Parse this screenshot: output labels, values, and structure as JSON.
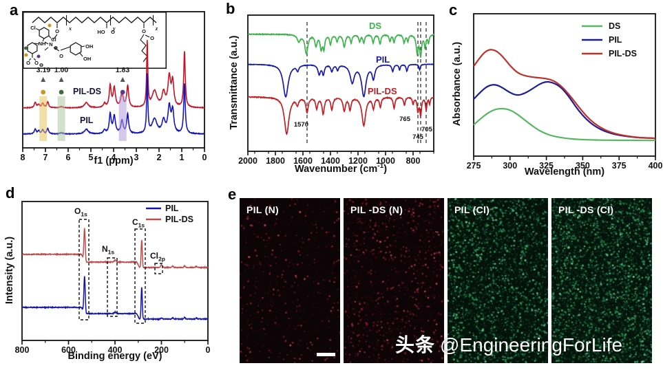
{
  "letters": {
    "a": "a",
    "b": "b",
    "c": "c",
    "d": "d",
    "e": "e"
  },
  "watermark": {
    "prefix": "头条",
    "handle": "@EngineeringForLife"
  },
  "inset": {
    "cl1": "Cl",
    "cl2": "Cl",
    "nh": "NH",
    "o_a": "O",
    "o_b": "O",
    "minus": "⊖",
    "x": "x",
    "y": "y",
    "z": "z",
    "o_x": "O",
    "n": "N",
    "plus": "⊕",
    "o_c": "O",
    "oh1": "OH",
    "oh2": "OH",
    "ho": "HO",
    "o_y": "O",
    "o_z": "O",
    "o_z2": "O"
  },
  "chart_data": [
    {
      "type": "line",
      "subtype": "nmr",
      "panel": "a",
      "xlabel": "f1 (ppm)",
      "ylabel": "",
      "xlim": [
        8,
        0
      ],
      "xticks": [
        8,
        7,
        6,
        5,
        4,
        3,
        2,
        1,
        0
      ],
      "series": [
        {
          "name": "PIL-DS",
          "color": "#c41425"
        },
        {
          "name": "PIL",
          "color": "#1515bd"
        }
      ],
      "peaks": [
        [
          7.45,
          0.08,
          0.05
        ],
        [
          7.3,
          0.05,
          0.05
        ],
        [
          7.12,
          0.07,
          0.05
        ],
        [
          6.9,
          0.09,
          0.05
        ],
        [
          6.3,
          0.02,
          0.08
        ],
        [
          5.2,
          0.08,
          0.1
        ],
        [
          4.4,
          0.06,
          0.06
        ],
        [
          4.15,
          0.33,
          0.05
        ],
        [
          3.97,
          0.3,
          0.06
        ],
        [
          3.63,
          0.22,
          0.06
        ],
        [
          3.38,
          0.33,
          0.05
        ],
        [
          2.52,
          1.0,
          0.03
        ],
        [
          2.2,
          0.25,
          0.13
        ],
        [
          1.8,
          0.22,
          0.08
        ],
        [
          1.55,
          0.45,
          0.07
        ],
        [
          1.4,
          0.38,
          0.06
        ],
        [
          0.88,
          0.85,
          0.04
        ]
      ],
      "integrations": [
        {
          "text": "3.19",
          "ppm": 7.1,
          "band": "#e7c35f",
          "dot": "#c9961e"
        },
        {
          "text": "1.00",
          "ppm": 6.3,
          "band": "#aec6a3",
          "dot": "#41693a"
        },
        {
          "text": "1.83",
          "ppm": 3.6,
          "band": "#b39bd8",
          "dot": "#5a3a8e"
        }
      ]
    },
    {
      "type": "line",
      "subtype": "ftir",
      "panel": "b",
      "ylabel": "Transmittance (a.u.)",
      "xlabel_parts": {
        "pre": "Wavenumber (cm",
        "sup": "-1",
        "post": ")"
      },
      "xlim": [
        2000,
        650
      ],
      "xticks": [
        2000,
        1800,
        1600,
        1400,
        1200,
        1000,
        800
      ],
      "series": [
        {
          "name": "DS",
          "color": "#3cb44b",
          "base": 0.86,
          "dips": [
            [
              1630,
              0.05,
              14
            ],
            [
              1575,
              0.14,
              13
            ],
            [
              1505,
              0.08,
              10
            ],
            [
              1468,
              0.1,
              9
            ],
            [
              1448,
              0.1,
              8
            ],
            [
              1400,
              0.07,
              8
            ],
            [
              1352,
              0.05,
              8
            ],
            [
              1300,
              0.09,
              10
            ],
            [
              1250,
              0.06,
              8
            ],
            [
              1188,
              0.05,
              8
            ],
            [
              1158,
              0.06,
              8
            ],
            [
              1090,
              0.06,
              8
            ],
            [
              1040,
              0.07,
              8
            ],
            [
              968,
              0.05,
              7
            ],
            [
              938,
              0.06,
              7
            ],
            [
              865,
              0.06,
              8
            ],
            [
              838,
              0.05,
              6
            ],
            [
              770,
              0.13,
              9
            ],
            [
              745,
              0.15,
              8
            ],
            [
              713,
              0.09,
              7
            ],
            [
              688,
              0.06,
              6
            ]
          ]
        },
        {
          "name": "PIL",
          "color": "#1818b0",
          "base": 0.64,
          "dips": [
            [
              1725,
              0.24,
              22
            ],
            [
              1638,
              0.04,
              10
            ],
            [
              1482,
              0.07,
              11
            ],
            [
              1452,
              0.07,
              9
            ],
            [
              1390,
              0.05,
              9
            ],
            [
              1348,
              0.04,
              8
            ],
            [
              1242,
              0.13,
              18
            ],
            [
              1158,
              0.23,
              19
            ],
            [
              1088,
              0.1,
              12
            ],
            [
              948,
              0.05,
              8
            ],
            [
              898,
              0.04,
              6
            ],
            [
              845,
              0.05,
              7
            ],
            [
              752,
              0.04,
              6
            ]
          ]
        },
        {
          "name": "PIL-DS",
          "color": "#c41e24",
          "base": 0.4,
          "dips": [
            [
              1718,
              0.27,
              20
            ],
            [
              1640,
              0.05,
              10
            ],
            [
              1570,
              0.11,
              10
            ],
            [
              1500,
              0.08,
              9
            ],
            [
              1453,
              0.12,
              10
            ],
            [
              1390,
              0.09,
              9
            ],
            [
              1300,
              0.1,
              10
            ],
            [
              1258,
              0.09,
              9
            ],
            [
              1158,
              0.21,
              16
            ],
            [
              1088,
              0.08,
              9
            ],
            [
              1038,
              0.07,
              8
            ],
            [
              938,
              0.08,
              8
            ],
            [
              863,
              0.06,
              7
            ],
            [
              800,
              0.05,
              6
            ],
            [
              765,
              0.1,
              7
            ],
            [
              745,
              0.13,
              7
            ],
            [
              705,
              0.09,
              6
            ],
            [
              680,
              0.05,
              5
            ]
          ]
        }
      ],
      "dashed": [
        {
          "pos": 1570,
          "label": "1570"
        },
        {
          "pos": 765,
          "label": "765"
        },
        {
          "pos": 745,
          "label": "745"
        },
        {
          "pos": 705,
          "label": "705"
        }
      ]
    },
    {
      "type": "line",
      "subtype": "uv",
      "panel": "c",
      "ylabel": "Absorbance (a.u.)",
      "xlabel": "Wavelength (nm)",
      "xlim": [
        275,
        400
      ],
      "xticks": [
        275,
        300,
        325,
        350,
        375,
        400
      ],
      "x_start": 275,
      "x_step": 5,
      "series": [
        {
          "name": "DS",
          "color": "#55b860",
          "values": [
            0.22,
            0.265,
            0.305,
            0.33,
            0.335,
            0.325,
            0.295,
            0.255,
            0.215,
            0.18,
            0.155,
            0.14,
            0.13,
            0.123,
            0.119,
            0.116,
            0.114,
            0.113,
            0.112,
            0.112,
            0.111,
            0.111,
            0.111,
            0.11,
            0.11,
            0.11
          ]
        },
        {
          "name": "PIL",
          "color": "#1c1c96",
          "values": [
            0.4,
            0.455,
            0.495,
            0.505,
            0.48,
            0.445,
            0.425,
            0.44,
            0.47,
            0.505,
            0.525,
            0.515,
            0.485,
            0.425,
            0.35,
            0.285,
            0.235,
            0.2,
            0.175,
            0.158,
            0.147,
            0.139,
            0.133,
            0.129,
            0.127,
            0.125
          ]
        },
        {
          "name": "PIL-DS",
          "color": "#c03028",
          "values": [
            0.63,
            0.705,
            0.75,
            0.745,
            0.7,
            0.635,
            0.585,
            0.565,
            0.555,
            0.55,
            0.545,
            0.53,
            0.495,
            0.44,
            0.375,
            0.31,
            0.255,
            0.215,
            0.185,
            0.165,
            0.151,
            0.142,
            0.135,
            0.13,
            0.127,
            0.125
          ]
        }
      ]
    },
    {
      "type": "line",
      "subtype": "xps",
      "panel": "d",
      "ylabel": "Intensity (a.u.)",
      "xlabel": "Binding energy (eV)",
      "xlim": [
        800,
        0
      ],
      "xticks": [
        800,
        600,
        400,
        200,
        0
      ],
      "series": [
        {
          "name": "PIL",
          "color": "#1414a8",
          "levels": [
            [
              800,
              537,
              0.238
            ],
            [
              537,
              300,
              0.193
            ],
            [
              300,
              0,
              0.154
            ]
          ],
          "peaks": [
            [
              531,
              0.27,
              4
            ],
            [
              399,
              0.01,
              6
            ],
            [
              285,
              0.23,
              3.5
            ],
            [
              200,
              0.006,
              5
            ],
            [
              152,
              0.01,
              4
            ],
            [
              100,
              0.012,
              4
            ],
            [
              50,
              0.008,
              4
            ]
          ]
        },
        {
          "name": "PIL-DS",
          "color": "#bf4a4a",
          "levels": [
            [
              800,
              537,
              0.62
            ],
            [
              537,
              300,
              0.564
            ],
            [
              300,
              0,
              0.525
            ]
          ],
          "peaks": [
            [
              531,
              0.24,
              4
            ],
            [
              399,
              0.015,
              6
            ],
            [
              285,
              0.2,
              3.5
            ],
            [
              200,
              0.02,
              5
            ],
            [
              152,
              0.01,
              4
            ],
            [
              100,
              0.012,
              4
            ],
            [
              50,
              0.008,
              4
            ]
          ]
        }
      ],
      "region_labels": [
        {
          "main": "O",
          "sub": "1s"
        },
        {
          "main": "N",
          "sub": "1s"
        },
        {
          "main": "C",
          "sub": "1s"
        },
        {
          "main": "Cl",
          "sub": "2p"
        }
      ]
    }
  ],
  "panel_e": {
    "images": [
      {
        "label": "PIL (N)",
        "bg": "#0c0406",
        "dot_color": "#a8283a",
        "bright_color": "#e05a6a",
        "count": 260
      },
      {
        "label": "PIL -DS (N)",
        "bg": "#0d0407",
        "dot_color": "#a8283a",
        "bright_color": "#e05a6a",
        "count": 520
      },
      {
        "label": "PIL (Cl)",
        "bg": "#04120a",
        "dot_color": "#2fae62",
        "bright_color": "#7ae8a8",
        "count": 1500
      },
      {
        "label": "PIL -DS (Cl)",
        "bg": "#05140b",
        "dot_color": "#2fae62",
        "bright_color": "#7ae8a8",
        "count": 1700
      }
    ]
  }
}
